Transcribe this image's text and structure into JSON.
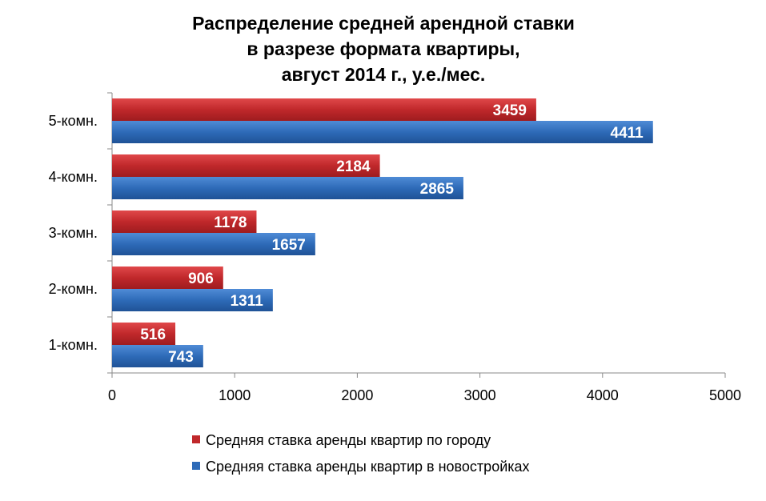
{
  "chart_data": {
    "type": "bar",
    "orientation": "horizontal",
    "title_lines": [
      "Распределение средней арендной ставки",
      "в разрезе формата квартиры,",
      "август 2014 г., у.е./мес."
    ],
    "categories": [
      "1-комн.",
      "2-комн.",
      "3-комн.",
      "4-комн.",
      "5-комн."
    ],
    "series": [
      {
        "name": "Средняя ставка аренды квартир по городу",
        "values": [
          516,
          906,
          1178,
          2184,
          3459
        ],
        "color": "#C0282B"
      },
      {
        "name": "Средняя ставка аренды квартир в новостройках",
        "values": [
          743,
          1311,
          1657,
          2865,
          4411
        ],
        "color": "#2E6BB8"
      }
    ],
    "x_ticks": [
      0,
      1000,
      2000,
      3000,
      4000,
      5000
    ],
    "xlim": [
      0,
      5000
    ],
    "grid": false,
    "legend_position": "bottom"
  }
}
